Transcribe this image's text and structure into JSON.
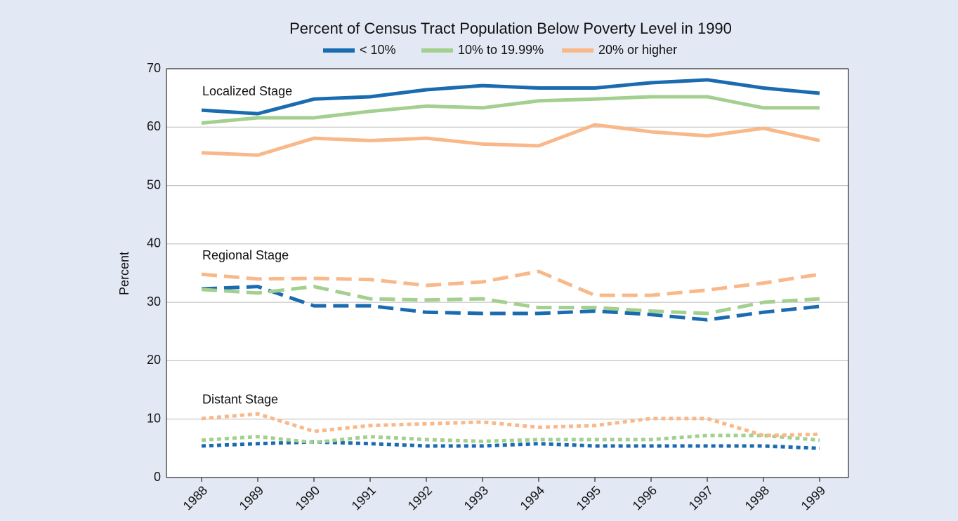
{
  "chart_data": {
    "type": "line",
    "title": "Percent of Census Tract Population Below Poverty Level in 1990",
    "ylabel": "Percent",
    "categories": [
      "1988",
      "1989",
      "1990",
      "1991",
      "1992",
      "1993",
      "1994",
      "1995",
      "1996",
      "1997",
      "1998",
      "1999"
    ],
    "legend": [
      {
        "name": "< 10%",
        "color": "#1a6bb0"
      },
      {
        "name": "10% to 19.99%",
        "color": "#a3cf8f"
      },
      {
        "name": "20% or higher",
        "color": "#f9b88a"
      }
    ],
    "groups": [
      {
        "label": "Localized Stage",
        "line_style": "solid",
        "series": [
          {
            "values": [
              62.9,
              62.3,
              64.8,
              65.2,
              66.4,
              67.1,
              66.7,
              66.7,
              67.6,
              68.1,
              66.7,
              65.8
            ]
          },
          {
            "values": [
              60.7,
              61.6,
              61.6,
              62.7,
              63.6,
              63.3,
              64.5,
              64.8,
              65.2,
              65.2,
              63.3,
              63.3
            ]
          },
          {
            "values": [
              55.6,
              55.2,
              58.1,
              57.7,
              58.1,
              57.1,
              56.8,
              60.4,
              59.2,
              58.5,
              59.8,
              57.7
            ]
          }
        ]
      },
      {
        "label": "Regional Stage",
        "line_style": "dashed",
        "series": [
          {
            "values": [
              32.3,
              32.7,
              29.4,
              29.4,
              28.3,
              28.1,
              28.1,
              28.5,
              27.9,
              27.0,
              28.3,
              29.3
            ]
          },
          {
            "values": [
              32.2,
              31.6,
              32.7,
              30.6,
              30.4,
              30.6,
              29.1,
              29.1,
              28.5,
              28.1,
              30.0,
              30.6
            ]
          },
          {
            "values": [
              34.8,
              34.0,
              34.1,
              33.9,
              32.9,
              33.5,
              35.3,
              31.2,
              31.2,
              32.1,
              33.3,
              34.8
            ]
          }
        ]
      },
      {
        "label": "Distant Stage",
        "line_style": "dotted",
        "series": [
          {
            "values": [
              5.4,
              5.8,
              6.1,
              5.8,
              5.4,
              5.4,
              5.8,
              5.4,
              5.4,
              5.4,
              5.4,
              5.0
            ]
          },
          {
            "values": [
              6.4,
              7.0,
              6.0,
              7.0,
              6.5,
              6.2,
              6.5,
              6.5,
              6.5,
              7.2,
              7.2,
              6.4
            ]
          },
          {
            "values": [
              10.1,
              10.9,
              7.9,
              8.9,
              9.2,
              9.5,
              8.6,
              8.9,
              10.1,
              10.1,
              7.2,
              7.4
            ]
          }
        ]
      }
    ],
    "ylim": [
      0,
      70
    ],
    "yticks": [
      0,
      10,
      20,
      30,
      40,
      50,
      60,
      70
    ],
    "grid": true
  }
}
